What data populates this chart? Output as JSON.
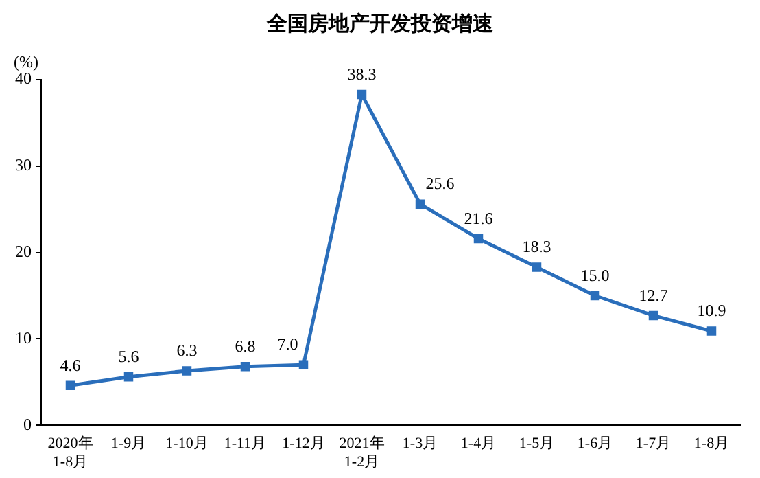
{
  "chart_data": {
    "type": "line",
    "title": "全国房地产开发投资增速",
    "ylabel": "(%)",
    "categories": [
      "2020年\n1-8月",
      "1-9月",
      "1-10月",
      "1-11月",
      "1-12月",
      "2021年\n1-2月",
      "1-3月",
      "1-4月",
      "1-5月",
      "1-6月",
      "1-7月",
      "1-8月"
    ],
    "series": [
      {
        "color": "#2a6ebb",
        "values": [
          4.6,
          5.6,
          6.3,
          6.8,
          7.0,
          38.3,
          25.6,
          21.6,
          18.3,
          15.0,
          12.7,
          10.9
        ],
        "value_labels": [
          "4.6",
          "5.6",
          "6.3",
          "6.8",
          "7.0",
          "38.3",
          "25.6",
          "21.6",
          "18.3",
          "15.0",
          "12.7",
          "10.9"
        ]
      }
    ],
    "ylim": [
      0,
      40
    ],
    "yticks": [
      0,
      10,
      20,
      30,
      40
    ],
    "grid": false,
    "legend": false,
    "marker": "square",
    "line_style": "solid"
  }
}
